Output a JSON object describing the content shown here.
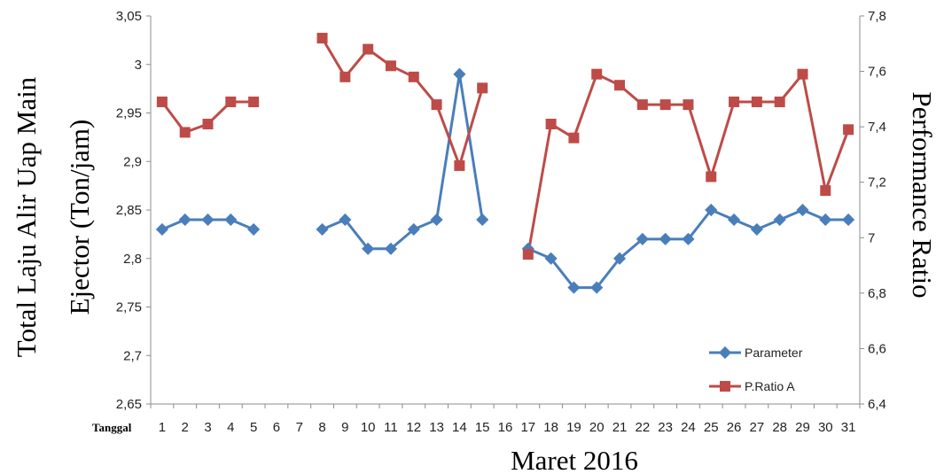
{
  "chart_data": {
    "type": "line",
    "xlabel": "Maret 2016",
    "x_prefix_label": "Tanggal",
    "ylabel_left": [
      "Total Laju Alir Uap Main",
      "Ejector (Ton/jam)"
    ],
    "ylabel_right": "Performance Ratio",
    "categories": [
      "1",
      "2",
      "3",
      "4",
      "5",
      "6",
      "7",
      "8",
      "9",
      "10",
      "11",
      "12",
      "13",
      "14",
      "15",
      "16",
      "17",
      "18",
      "19",
      "20",
      "21",
      "22",
      "23",
      "24",
      "25",
      "26",
      "27",
      "28",
      "29",
      "30",
      "31"
    ],
    "y_left": {
      "min": 2.65,
      "max": 3.05,
      "ticks": [
        "2,65",
        "2,7",
        "2,75",
        "2,8",
        "2,85",
        "2,9",
        "2,95",
        "3",
        "3,05"
      ]
    },
    "y_right": {
      "min": 6.4,
      "max": 7.8,
      "ticks": [
        "6,4",
        "6,6",
        "6,8",
        "7",
        "7,2",
        "7,4",
        "7,6",
        "7,8"
      ]
    },
    "series": [
      {
        "name": "Parameter",
        "color": "#4a7ebb",
        "marker": "diamond",
        "axis": "left",
        "values": [
          2.83,
          2.84,
          2.84,
          2.84,
          2.83,
          null,
          null,
          2.83,
          2.84,
          2.81,
          2.81,
          2.83,
          2.84,
          2.99,
          2.84,
          null,
          2.81,
          2.8,
          2.77,
          2.77,
          2.8,
          2.82,
          2.82,
          2.82,
          2.85,
          2.84,
          2.83,
          2.84,
          2.85,
          2.84,
          2.84
        ]
      },
      {
        "name": "P.Ratio A",
        "color": "#be4b48",
        "marker": "square",
        "axis": "right",
        "values": [
          7.49,
          7.38,
          7.41,
          7.49,
          7.49,
          null,
          null,
          7.72,
          7.58,
          7.68,
          7.62,
          7.58,
          7.48,
          7.26,
          7.54,
          null,
          6.94,
          7.41,
          7.36,
          7.59,
          7.55,
          7.48,
          7.48,
          7.48,
          7.22,
          7.49,
          7.49,
          7.49,
          7.59,
          7.17,
          7.39
        ]
      }
    ],
    "legend": "bottom-right",
    "grid": false
  }
}
